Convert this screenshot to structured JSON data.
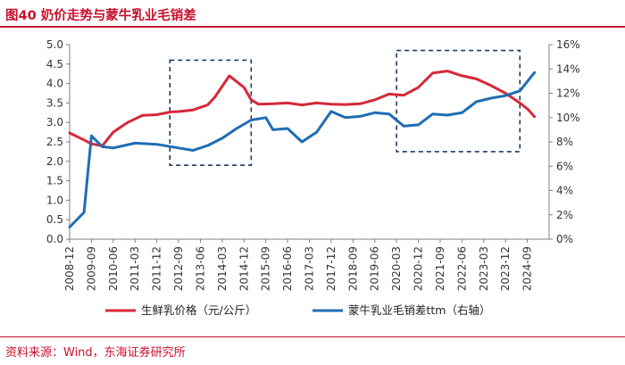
{
  "figure": {
    "title": "图40  奶价走势与蒙牛乳业毛销差",
    "source": "资料来源：Wind，东海证券研究所"
  },
  "colors": {
    "accent": "#c8102e",
    "milk_price": "#d62839",
    "margin": "#1f6db5",
    "box": "#1f3864"
  },
  "chart_data": {
    "type": "line",
    "x": [
      "2008-12",
      "2009-09",
      "2010-06",
      "2011-03",
      "2011-12",
      "2012-09",
      "2013-06",
      "2014-03",
      "2014-12",
      "2015-09",
      "2016-06",
      "2017-03",
      "2017-12",
      "2018-09",
      "2019-06",
      "2020-03",
      "2020-12",
      "2021-09",
      "2022-06",
      "2023-03",
      "2023-12",
      "2024-09"
    ],
    "y_left": {
      "ylim": [
        0,
        5.0
      ],
      "ticks": [
        "0.0",
        "0.5",
        "1.0",
        "1.5",
        "2.0",
        "2.5",
        "3.0",
        "3.5",
        "4.0",
        "4.5",
        "5.0"
      ]
    },
    "y_right": {
      "ylim": [
        0,
        16
      ],
      "ticks": [
        "0%",
        "2%",
        "4%",
        "6%",
        "8%",
        "10%",
        "12%",
        "14%",
        "16%"
      ]
    },
    "series": [
      {
        "name": "生鲜乳价格（元/公斤）",
        "axis": "left",
        "values": [
          {
            "t": 0,
            "v": 2.73
          },
          {
            "t": 0.66,
            "v": 2.55
          },
          {
            "t": 1.0,
            "v": 2.45
          },
          {
            "t": 1.5,
            "v": 2.4
          },
          {
            "t": 2.0,
            "v": 2.75
          },
          {
            "t": 2.66,
            "v": 3.0
          },
          {
            "t": 3.0,
            "v": 3.09
          },
          {
            "t": 3.33,
            "v": 3.18
          },
          {
            "t": 4.0,
            "v": 3.2
          },
          {
            "t": 4.66,
            "v": 3.27
          },
          {
            "t": 5.0,
            "v": 3.28
          },
          {
            "t": 5.66,
            "v": 3.32
          },
          {
            "t": 6.33,
            "v": 3.45
          },
          {
            "t": 6.66,
            "v": 3.65
          },
          {
            "t": 7.33,
            "v": 4.2
          },
          {
            "t": 8.0,
            "v": 3.9
          },
          {
            "t": 8.33,
            "v": 3.58
          },
          {
            "t": 8.66,
            "v": 3.47
          },
          {
            "t": 9.33,
            "v": 3.48
          },
          {
            "t": 10.0,
            "v": 3.5
          },
          {
            "t": 10.66,
            "v": 3.45
          },
          {
            "t": 11.33,
            "v": 3.5
          },
          {
            "t": 12.0,
            "v": 3.47
          },
          {
            "t": 12.66,
            "v": 3.46
          },
          {
            "t": 13.33,
            "v": 3.48
          },
          {
            "t": 14.0,
            "v": 3.58
          },
          {
            "t": 14.66,
            "v": 3.73
          },
          {
            "t": 15.33,
            "v": 3.7
          },
          {
            "t": 16.0,
            "v": 3.9
          },
          {
            "t": 16.66,
            "v": 4.27
          },
          {
            "t": 17.33,
            "v": 4.32
          },
          {
            "t": 18.0,
            "v": 4.2
          },
          {
            "t": 18.66,
            "v": 4.12
          },
          {
            "t": 19.33,
            "v": 3.95
          },
          {
            "t": 20.0,
            "v": 3.75
          },
          {
            "t": 20.66,
            "v": 3.5
          },
          {
            "t": 21.0,
            "v": 3.35
          },
          {
            "t": 21.33,
            "v": 3.15
          }
        ]
      },
      {
        "name": "蒙牛乳业毛销差ttm（右轴）",
        "axis": "right",
        "values": [
          {
            "t": 0,
            "v": 1.0
          },
          {
            "t": 0.66,
            "v": 2.2
          },
          {
            "t": 1.0,
            "v": 8.5
          },
          {
            "t": 1.5,
            "v": 7.6
          },
          {
            "t": 2.0,
            "v": 7.5
          },
          {
            "t": 3.0,
            "v": 7.9
          },
          {
            "t": 4.0,
            "v": 7.8
          },
          {
            "t": 5.0,
            "v": 7.5
          },
          {
            "t": 5.66,
            "v": 7.3
          },
          {
            "t": 6.33,
            "v": 7.7
          },
          {
            "t": 7.0,
            "v": 8.3
          },
          {
            "t": 7.66,
            "v": 9.1
          },
          {
            "t": 8.33,
            "v": 9.8
          },
          {
            "t": 9.0,
            "v": 10.0
          },
          {
            "t": 9.33,
            "v": 9.0
          },
          {
            "t": 10.0,
            "v": 9.1
          },
          {
            "t": 10.66,
            "v": 8.0
          },
          {
            "t": 11.33,
            "v": 8.8
          },
          {
            "t": 12.0,
            "v": 10.5
          },
          {
            "t": 12.66,
            "v": 10.0
          },
          {
            "t": 13.33,
            "v": 10.1
          },
          {
            "t": 14.0,
            "v": 10.4
          },
          {
            "t": 14.66,
            "v": 10.3
          },
          {
            "t": 15.33,
            "v": 9.3
          },
          {
            "t": 16.0,
            "v": 9.4
          },
          {
            "t": 16.66,
            "v": 10.3
          },
          {
            "t": 17.33,
            "v": 10.2
          },
          {
            "t": 18.0,
            "v": 10.4
          },
          {
            "t": 18.66,
            "v": 11.3
          },
          {
            "t": 19.33,
            "v": 11.6
          },
          {
            "t": 20.0,
            "v": 11.8
          },
          {
            "t": 20.66,
            "v": 12.2
          },
          {
            "t": 21.33,
            "v": 13.7
          }
        ]
      }
    ],
    "annotations": [
      {
        "type": "dashed-box",
        "x_from": 4.6,
        "x_to": 8.33,
        "y_from": 1.9,
        "y_to": 4.6
      },
      {
        "type": "dashed-box",
        "x_from": 15.0,
        "x_to": 20.66,
        "y_from": 2.25,
        "y_to": 4.85
      }
    ],
    "legend": {
      "position": "bottom",
      "entries": [
        "生鲜乳价格（元/公斤）",
        "蒙牛乳业毛销差ttm（右轴）"
      ]
    }
  }
}
